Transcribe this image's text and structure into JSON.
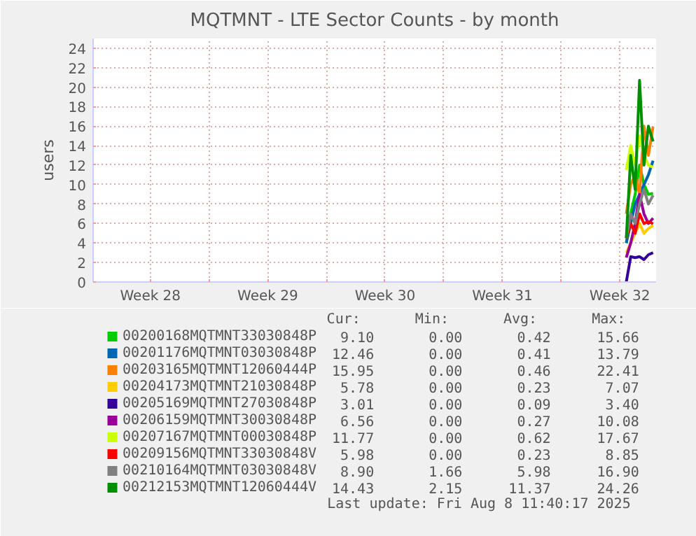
{
  "chart_data": {
    "type": "line",
    "title": "MQTMNT - LTE Sector Counts - by month",
    "ylabel": "users",
    "x": [
      "2025-08-06T21:20",
      "2025-08-07T03:40",
      "2025-08-07T10:00",
      "2025-08-07T16:20",
      "2025-08-07T22:40",
      "2025-08-08T05:00",
      "2025-08-08T11:40"
    ],
    "xlim": [
      "2025-07-06T02:00",
      "2025-08-08T16:00"
    ],
    "xticks": [
      {
        "value": "2025-07-09T12:00",
        "label": "Week 28"
      },
      {
        "value": "2025-07-13",
        "label": null
      },
      {
        "value": "2025-07-16T12:00",
        "label": "Week 29"
      },
      {
        "value": "2025-07-20",
        "label": null
      },
      {
        "value": "2025-07-23T12:00",
        "label": "Week 30"
      },
      {
        "value": "2025-07-27",
        "label": null
      },
      {
        "value": "2025-07-30T12:00",
        "label": "Week 31"
      },
      {
        "value": "2025-08-03",
        "label": null
      },
      {
        "value": "2025-08-06T12:00",
        "label": "Week 32"
      }
    ],
    "ylim": [
      0,
      25
    ],
    "yticks": [
      0,
      2,
      4,
      6,
      8,
      10,
      12,
      14,
      16,
      18,
      20,
      22,
      24
    ],
    "grid": true,
    "legend": "bottom",
    "marker": "none",
    "line_style": "solid",
    "series": [
      {
        "name": "00200168MQTMNT33030848P",
        "color": "#00cc00",
        "values": [
          4,
          7,
          9,
          12,
          10,
          9,
          9.1
        ]
      },
      {
        "name": "00201176MQTMNT03030848P",
        "color": "#0066b3",
        "values": [
          4,
          6,
          8,
          9,
          10,
          11,
          12.46
        ]
      },
      {
        "name": "00203165MQTMNT12060444P",
        "color": "#ff8000",
        "values": [
          7,
          10,
          11,
          9,
          16,
          13,
          15.95
        ]
      },
      {
        "name": "00204173MQTMNT21030848P",
        "color": "#ffcc00",
        "values": [
          3,
          4,
          5,
          6,
          5,
          5.5,
          5.78
        ]
      },
      {
        "name": "00205169MQTMNT27030848P",
        "color": "#330099",
        "values": [
          0,
          2.6,
          2.5,
          2.6,
          2.3,
          2.8,
          3.01
        ]
      },
      {
        "name": "00206159MQTMNT30030848P",
        "color": "#990099",
        "values": [
          2.5,
          4,
          6,
          9,
          7,
          6,
          6.56
        ]
      },
      {
        "name": "00207167MQTMNT00030848P",
        "color": "#ccff00",
        "values": [
          11.5,
          14,
          12,
          15,
          13,
          12,
          11.77
        ]
      },
      {
        "name": "00209156MQTMNT33030848V",
        "color": "#ff0000",
        "values": [
          4.5,
          6,
          5,
          7,
          6,
          6.2,
          5.98
        ]
      },
      {
        "name": "00210164MQTMNT03030848V",
        "color": "#808080",
        "values": [
          4.5,
          7,
          6,
          8,
          9.5,
          8,
          8.9
        ]
      },
      {
        "name": "00212153MQTMNT12060444V",
        "color": "#008f00",
        "values": [
          4.5,
          13,
          9.5,
          20.7,
          12,
          16,
          14.43
        ]
      }
    ],
    "annotations": [
      "Cur:",
      "Min:",
      "Avg:",
      "Max:",
      "9.10",
      "0.00",
      "0.42",
      "15.66",
      "12.46",
      "0.00",
      "0.41",
      "13.79",
      "15.95",
      "0.00",
      "0.46",
      "22.41",
      "5.78",
      "0.00",
      "0.23",
      "7.07",
      "3.01",
      "0.00",
      "0.09",
      "3.40",
      "6.56",
      "0.00",
      "0.27",
      "10.08",
      "11.77",
      "0.00",
      "0.62",
      "17.67",
      "5.98",
      "0.00",
      "0.23",
      "8.85",
      "8.90",
      "1.66",
      "5.98",
      "16.90",
      "14.43",
      "2.15",
      "11.37",
      "24.26",
      "Last update: Fri Aug  8 11:40:17 2025"
    ]
  }
}
